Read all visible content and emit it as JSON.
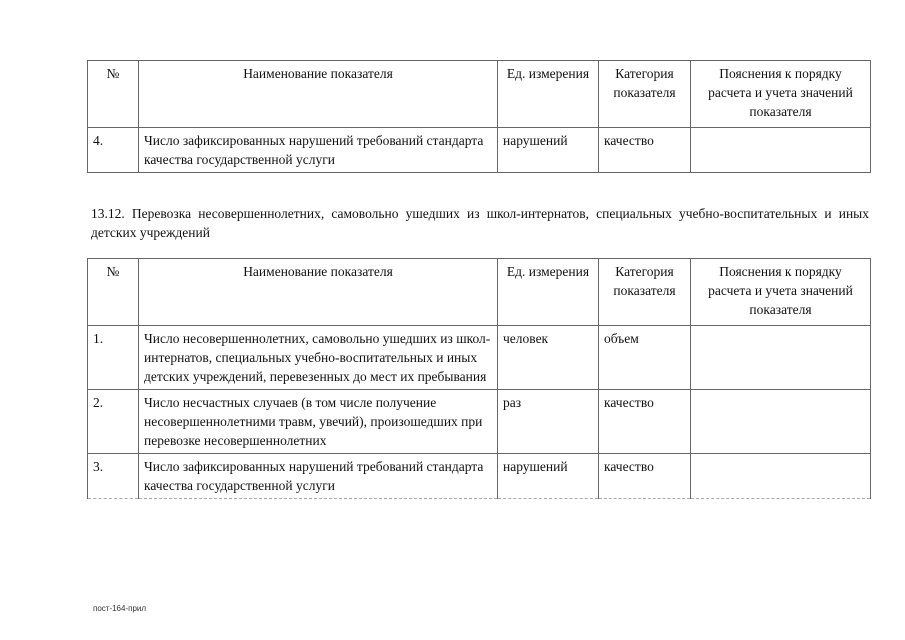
{
  "table1": {
    "headers": [
      "№",
      "Наименование показателя",
      "Ед. измерения",
      "Категория показателя",
      "Пояснения к порядку расчета и учета значений показателя"
    ],
    "rows": [
      {
        "num": "4.",
        "name": "Число зафиксированных нарушений требований стандарта качества государственной услуги",
        "unit": "нарушений",
        "category": "качество",
        "notes": ""
      }
    ]
  },
  "section": {
    "text": "13.12. Перевозка несовершеннолетних, самовольно ушедших из школ-интернатов, специальных учебно-воспитательных и иных детских учреждений"
  },
  "table2": {
    "headers": [
      "№",
      "Наименование показателя",
      "Ед. измерения",
      "Категория показателя",
      "Пояснения к порядку расчета и учета значений показателя"
    ],
    "rows": [
      {
        "num": "1.",
        "name": "Число несовершеннолетних, самовольно ушедших из школ-интернатов, специальных учебно-воспитательных и иных детских учреждений, перевезенных до мест их пребывания",
        "unit": "человек",
        "category": "объем",
        "notes": ""
      },
      {
        "num": "2.",
        "name": "Число несчастных случаев (в том числе получение несовершеннолетними травм, увечий), произошедших при перевозке несовершеннолетних",
        "unit": "раз",
        "category": "качество",
        "notes": ""
      },
      {
        "num": "3.",
        "name": "Число зафиксированных нарушений требований стандарта качества государственной услуги",
        "unit": "нарушений",
        "category": "качество",
        "notes": ""
      }
    ]
  },
  "footer": {
    "text": "пост-164-прил"
  }
}
